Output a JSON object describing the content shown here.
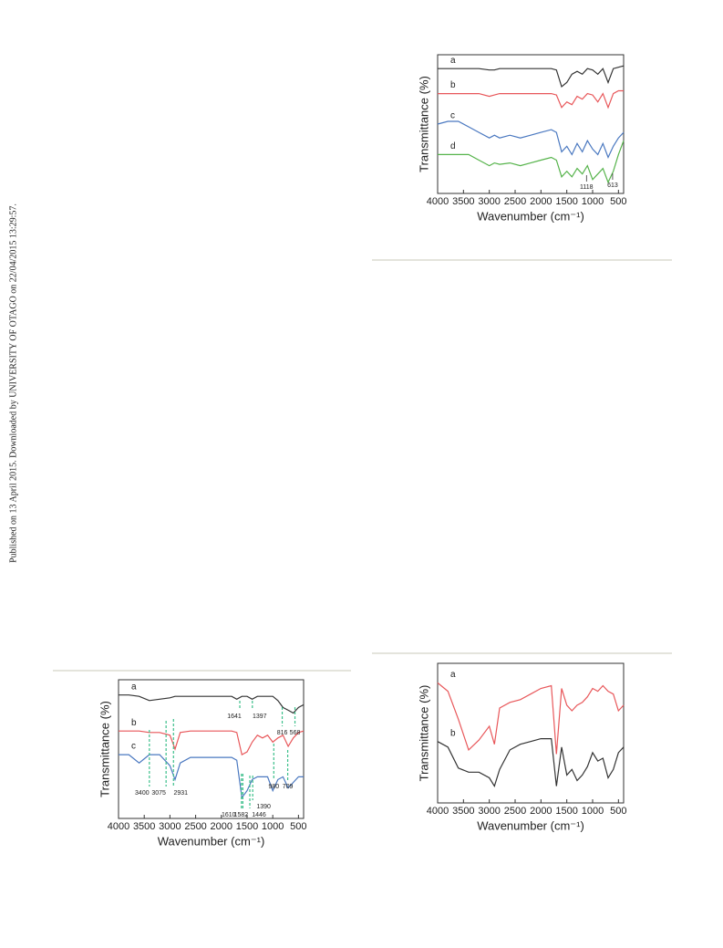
{
  "sidebar": "Published on 13 April 2015. Downloaded by UNIVERSITY OF OTAGO on 22/04/2015 13:29:57.",
  "chart_data": [
    {
      "type": "line",
      "y_label": "Transmittance (%)",
      "x_label": "Wavenumber (cm⁻¹)",
      "x": [
        4000,
        3800,
        3600,
        3400,
        3200,
        3000,
        2900,
        2800,
        2600,
        2400,
        2200,
        2000,
        1800,
        1700,
        1600,
        1500,
        1400,
        1300,
        1200,
        1100,
        1000,
        900,
        800,
        700,
        600,
        500,
        400
      ],
      "xlim": [
        4000,
        400
      ],
      "xticks": [
        4000,
        3500,
        3000,
        2500,
        2000,
        1500,
        1000,
        500
      ],
      "ylim": [
        0,
        100
      ],
      "series": [
        {
          "name": "a",
          "color": "#333333",
          "values": [
            90,
            90,
            90,
            90,
            90,
            89,
            89,
            90,
            90,
            90,
            90,
            90,
            90,
            89,
            77,
            80,
            86,
            88,
            86,
            90,
            89,
            86,
            90,
            80,
            90,
            91,
            92
          ]
        },
        {
          "name": "b",
          "color": "#e8575a",
          "values": [
            72,
            72,
            72,
            72,
            72,
            70,
            71,
            72,
            72,
            72,
            72,
            72,
            72,
            71,
            62,
            66,
            64,
            70,
            68,
            72,
            71,
            66,
            72,
            62,
            72,
            74,
            74
          ]
        },
        {
          "name": "c",
          "color": "#4a78c0",
          "values": [
            50,
            52,
            52,
            48,
            44,
            40,
            42,
            40,
            42,
            40,
            42,
            44,
            46,
            44,
            30,
            34,
            28,
            36,
            30,
            38,
            32,
            28,
            36,
            26,
            34,
            40,
            44
          ]
        },
        {
          "name": "d",
          "color": "#55b34a",
          "values": [
            28,
            28,
            28,
            28,
            24,
            20,
            22,
            21,
            22,
            20,
            22,
            24,
            26,
            24,
            12,
            16,
            12,
            18,
            14,
            20,
            10,
            14,
            18,
            8,
            16,
            28,
            38
          ]
        }
      ],
      "annotations": [
        1118,
        613
      ]
    },
    {
      "type": "line",
      "y_label": "Transmittance (%)",
      "x_label": "Wavenumber (cm⁻¹)",
      "x": [
        4000,
        3800,
        3600,
        3400,
        3200,
        3000,
        2900,
        2800,
        2600,
        2400,
        2200,
        2000,
        1800,
        1700,
        1600,
        1500,
        1400,
        1300,
        1200,
        1100,
        1000,
        900,
        800,
        700,
        600,
        500,
        400
      ],
      "xlim": [
        4000,
        400
      ],
      "xticks": [
        4000,
        3500,
        3000,
        2500,
        2000,
        1500,
        1000,
        500
      ],
      "ylim": [
        0,
        100
      ],
      "series": [
        {
          "name": "a",
          "color": "#333333",
          "values": [
            89,
            89,
            88,
            85,
            86,
            87,
            88,
            88,
            88,
            88,
            88,
            88,
            88,
            86,
            88,
            88,
            86,
            88,
            88,
            88,
            88,
            85,
            80,
            78,
            76,
            80,
            82
          ]
        },
        {
          "name": "b",
          "color": "#e8575a",
          "values": [
            63,
            63,
            63,
            62,
            62,
            60,
            50,
            62,
            63,
            63,
            63,
            63,
            63,
            62,
            46,
            48,
            55,
            60,
            58,
            60,
            55,
            58,
            60,
            52,
            58,
            62,
            63
          ]
        },
        {
          "name": "c",
          "color": "#4a78c0",
          "values": [
            46,
            46,
            40,
            46,
            46,
            38,
            28,
            40,
            44,
            44,
            44,
            44,
            44,
            42,
            15,
            20,
            28,
            30,
            30,
            30,
            20,
            28,
            30,
            22,
            26,
            30,
            30
          ]
        }
      ],
      "annotations": [
        3400,
        3075,
        2931,
        1641,
        1397,
        816,
        568,
        1610,
        1582,
        1446,
        1390,
        980,
        709
      ]
    },
    {
      "type": "line",
      "y_label": "Transmittance (%)",
      "x_label": "Wavenumber (cm⁻¹)",
      "x": [
        4000,
        3800,
        3600,
        3400,
        3200,
        3000,
        2900,
        2800,
        2600,
        2400,
        2200,
        2000,
        1800,
        1700,
        1600,
        1500,
        1400,
        1300,
        1200,
        1100,
        1000,
        900,
        800,
        700,
        600,
        500,
        400
      ],
      "xlim": [
        4000,
        400
      ],
      "xticks": [
        4000,
        3500,
        3000,
        2500,
        2000,
        1500,
        1000,
        500
      ],
      "ylim": [
        0,
        100
      ],
      "series": [
        {
          "name": "a",
          "color": "#e8575a",
          "values": [
            86,
            80,
            60,
            38,
            45,
            55,
            42,
            68,
            72,
            74,
            78,
            82,
            84,
            35,
            82,
            70,
            66,
            70,
            72,
            76,
            82,
            80,
            84,
            80,
            78,
            66,
            70
          ]
        },
        {
          "name": "b",
          "color": "#333333",
          "values": [
            44,
            40,
            25,
            22,
            22,
            18,
            12,
            24,
            38,
            42,
            44,
            46,
            46,
            12,
            40,
            20,
            24,
            16,
            20,
            26,
            36,
            30,
            32,
            18,
            24,
            36,
            40
          ]
        }
      ],
      "annotations": []
    }
  ]
}
